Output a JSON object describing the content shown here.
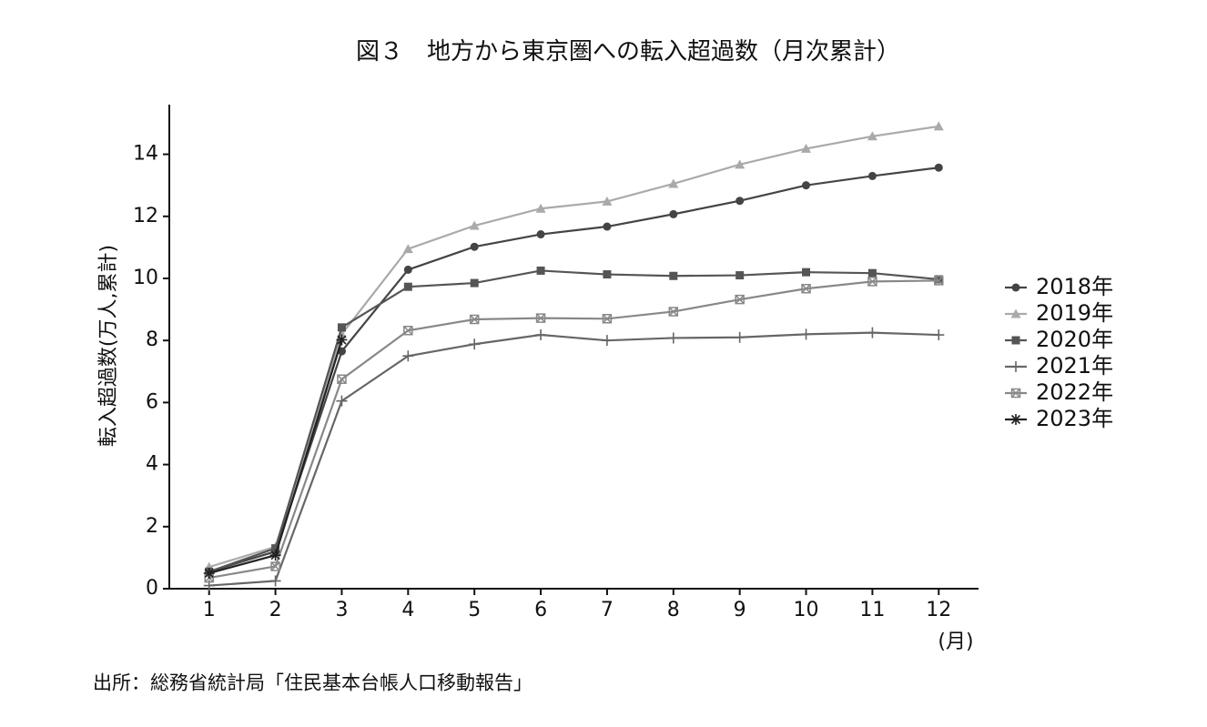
{
  "chart_data": {
    "type": "line",
    "title": "図３　地方から東京圏への転入超過数（月次累計）",
    "y_label": "転入超過数(万人,累計)",
    "x_label": "(月)",
    "source": "出所：総務省統計局「住民基本台帳人口移動報告」",
    "x": [
      1,
      2,
      3,
      4,
      5,
      6,
      7,
      8,
      9,
      10,
      11,
      12
    ],
    "xlim": [
      0.4,
      12.6
    ],
    "xticks": [
      1,
      2,
      3,
      4,
      5,
      6,
      7,
      8,
      9,
      10,
      11,
      12
    ],
    "ylim": [
      0,
      15.6
    ],
    "yticks": [
      0,
      2,
      4,
      6,
      8,
      10,
      12,
      14
    ],
    "legend": "right",
    "series": [
      {
        "name": "2018年",
        "color": "#444444",
        "marker": "circle",
        "values": [
          0.55,
          1.2,
          7.65,
          10.28,
          11.02,
          11.42,
          11.67,
          12.07,
          12.5,
          13.0,
          13.3,
          13.57
        ]
      },
      {
        "name": "2019年",
        "color": "#aaaaaa",
        "marker": "triangle",
        "values": [
          0.7,
          1.35,
          8.2,
          10.95,
          11.7,
          12.25,
          12.48,
          13.05,
          13.67,
          14.18,
          14.58,
          14.9
        ]
      },
      {
        "name": "2020年",
        "color": "#555555",
        "marker": "square",
        "values": [
          0.55,
          1.3,
          8.42,
          9.73,
          9.85,
          10.25,
          10.13,
          10.08,
          10.1,
          10.2,
          10.17,
          9.97
        ]
      },
      {
        "name": "2021年",
        "color": "#666666",
        "marker": "plus",
        "values": [
          0.1,
          0.25,
          6.05,
          7.5,
          7.88,
          8.18,
          8.0,
          8.08,
          8.1,
          8.2,
          8.25,
          8.18
        ]
      },
      {
        "name": "2022年",
        "color": "#888888",
        "marker": "boxx",
        "values": [
          0.35,
          0.72,
          6.75,
          8.32,
          8.68,
          8.72,
          8.7,
          8.93,
          9.32,
          9.67,
          9.9,
          9.93
        ]
      },
      {
        "name": "2023年",
        "color": "#222222",
        "marker": "asterisk",
        "values": [
          0.5,
          1.08,
          8.02,
          null,
          null,
          null,
          null,
          null,
          null,
          null,
          null,
          null
        ]
      }
    ]
  }
}
